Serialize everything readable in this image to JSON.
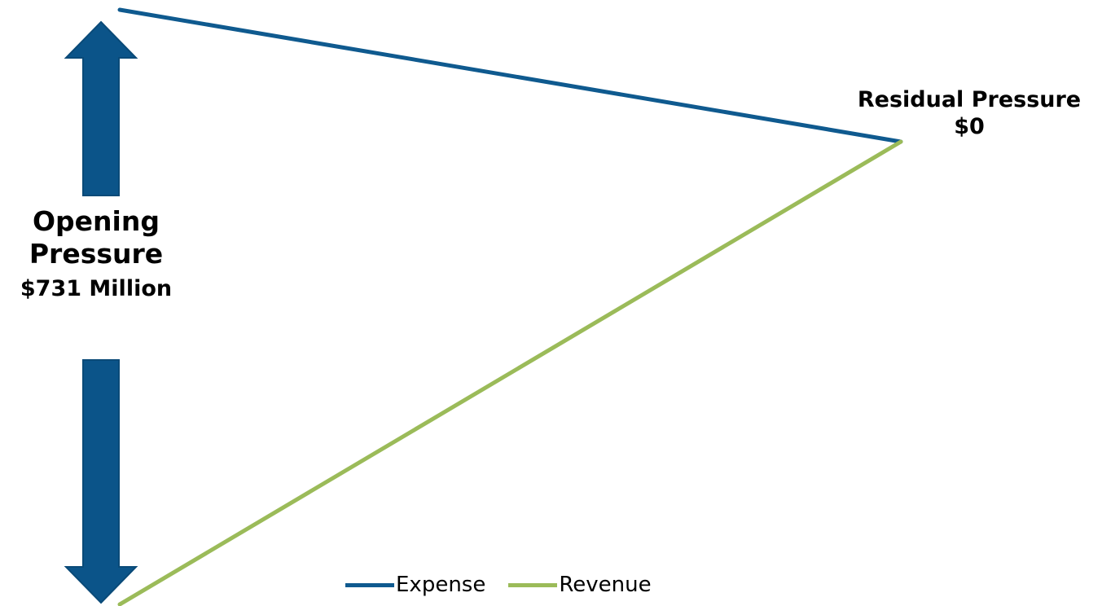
{
  "chart_data": {
    "type": "line",
    "x": [
      0,
      1
    ],
    "series": [
      {
        "name": "Expense",
        "color": "#0F5A8F",
        "values": [
          731,
          0
        ]
      },
      {
        "name": "Revenue",
        "color": "#9BBB59",
        "values": [
          -731,
          0
        ]
      }
    ],
    "annotations": {
      "opening": {
        "line1": "Opening",
        "line2": "Pressure",
        "line3": "$731 Million"
      },
      "residual": {
        "line1": "Residual Pressure",
        "line2": "$0"
      }
    },
    "arrow_color": "#0B5489",
    "legend_position": "bottom",
    "grid": false,
    "title": "",
    "xlabel": "",
    "ylabel": ""
  }
}
